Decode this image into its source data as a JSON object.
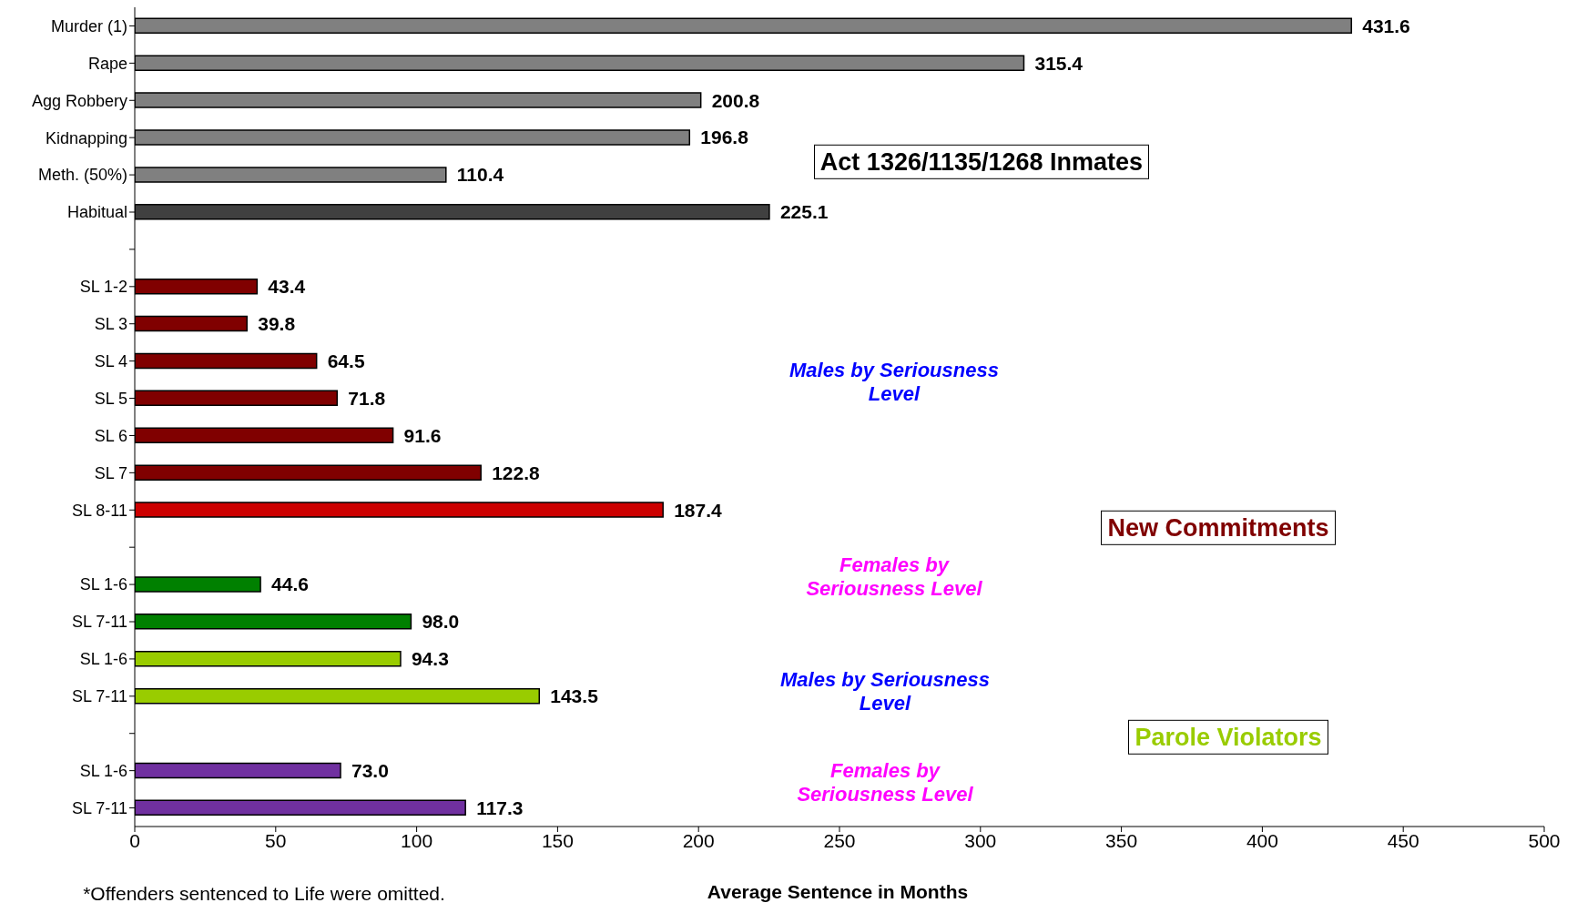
{
  "chart_data": {
    "type": "bar",
    "orientation": "horizontal",
    "xlabel": "Average Sentence in Months",
    "categories": [
      "Murder (1)",
      "Rape",
      "Agg Robbery",
      "Kidnapping",
      "Meth. (50%)",
      "Habitual",
      null,
      "SL 1-2",
      "SL 3",
      "SL 4",
      "SL 5",
      "SL 6",
      "SL 7",
      "SL 8-11",
      null,
      "SL 1-6",
      "SL 7-11",
      "SL 1-6",
      "SL 7-11",
      null,
      "SL 1-6",
      "SL 7-11"
    ],
    "values": [
      431.6,
      315.4,
      200.8,
      196.8,
      110.4,
      225.1,
      null,
      43.4,
      39.8,
      64.5,
      71.8,
      91.6,
      122.8,
      187.4,
      null,
      44.6,
      98.0,
      94.3,
      143.5,
      null,
      73.0,
      117.3
    ],
    "value_labels": [
      "431.6",
      "315.4",
      "200.8",
      "196.8",
      "110.4",
      "225.1",
      null,
      "43.4",
      "39.8",
      "64.5",
      "71.8",
      "91.6",
      "122.8",
      "187.4",
      null,
      "44.6",
      "98.0",
      "94.3",
      "143.5",
      null,
      "73.0",
      "117.3"
    ],
    "colors": [
      "#808080",
      "#808080",
      "#808080",
      "#808080",
      "#808080",
      "#404040",
      "#808080",
      "#800000",
      "#800000",
      "#800000",
      "#800000",
      "#800000",
      "#800000",
      "#cc0000",
      "#808080",
      "#008000",
      "#008000",
      "#99cc00",
      "#99cc00",
      "#808080",
      "#7030a0",
      "#7030a0"
    ],
    "xlim": [
      0,
      500
    ],
    "xticks": [
      0,
      50,
      100,
      150,
      200,
      250,
      300,
      350,
      400,
      450,
      500
    ],
    "annotations": [
      "Act 1326/1135/1268 Inmates",
      "Males by Seriousness Level",
      "New Commitments",
      "Females by Seriousness Level",
      "Males by Seriousness Level",
      "Parole Violators",
      "Females by Seriousness Level",
      "*Offenders sentenced to Life were omitted."
    ],
    "grid": false,
    "legend": false
  }
}
